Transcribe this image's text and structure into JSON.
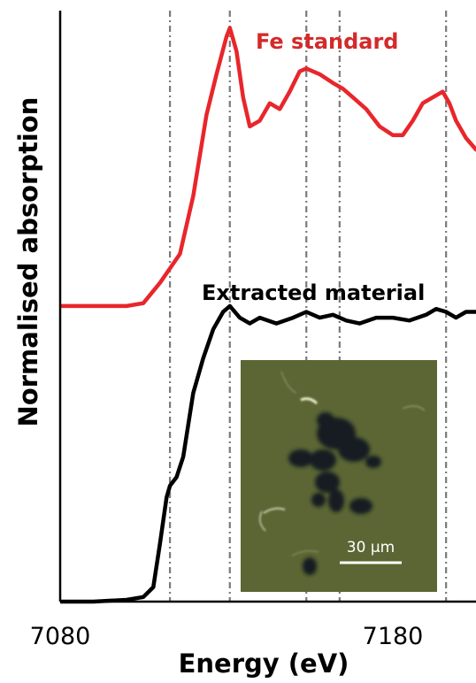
{
  "chart_data": {
    "type": "line",
    "xlabel": "Energy (eV)",
    "ylabel": "Normalised absorption",
    "xlim": [
      7080,
      7205
    ],
    "ylim": [
      0,
      1
    ],
    "x_ticks": [
      7080,
      7180
    ],
    "grid": false,
    "reference_lines_x": [
      7113,
      7131,
      7154,
      7164,
      7196
    ],
    "series": [
      {
        "name": "Fe standard",
        "color": "#e8262b",
        "x": [
          7080,
          7090,
          7095,
          7100,
          7105,
          7110,
          7113,
          7116,
          7120,
          7124,
          7127,
          7130,
          7131,
          7133,
          7135,
          7137,
          7140,
          7143,
          7146,
          7149,
          7152,
          7154,
          7158,
          7162,
          7165,
          7168,
          7172,
          7176,
          7180,
          7183,
          7186,
          7189,
          7192,
          7195,
          7197,
          7199,
          7202,
          7205
        ],
        "y": [
          0.51,
          0.51,
          0.51,
          0.51,
          0.515,
          0.55,
          0.575,
          0.6,
          0.7,
          0.84,
          0.91,
          0.975,
          0.99,
          0.95,
          0.87,
          0.82,
          0.83,
          0.86,
          0.85,
          0.88,
          0.915,
          0.92,
          0.91,
          0.895,
          0.885,
          0.87,
          0.85,
          0.82,
          0.805,
          0.805,
          0.83,
          0.86,
          0.87,
          0.88,
          0.86,
          0.83,
          0.8,
          0.78
        ]
      },
      {
        "name": "Extracted material",
        "color": "#000000",
        "x": [
          7080,
          7090,
          7100,
          7105,
          7108,
          7110,
          7112,
          7113,
          7115,
          7117,
          7120,
          7123,
          7126,
          7129,
          7131,
          7134,
          7137,
          7140,
          7145,
          7150,
          7154,
          7158,
          7162,
          7166,
          7170,
          7175,
          7180,
          7185,
          7190,
          7193,
          7196,
          7199,
          7202,
          7205
        ],
        "y": [
          0.0,
          0.0,
          0.003,
          0.008,
          0.025,
          0.1,
          0.18,
          0.2,
          0.215,
          0.25,
          0.36,
          0.42,
          0.47,
          0.5,
          0.51,
          0.49,
          0.48,
          0.49,
          0.48,
          0.49,
          0.5,
          0.49,
          0.495,
          0.485,
          0.48,
          0.49,
          0.49,
          0.485,
          0.495,
          0.505,
          0.5,
          0.49,
          0.5,
          0.5
        ]
      }
    ],
    "inset": {
      "scale_bar_label": "30 µm"
    }
  }
}
